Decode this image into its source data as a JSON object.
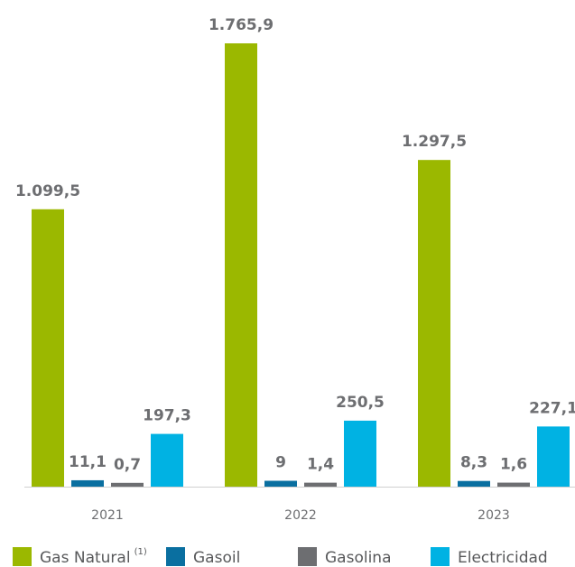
{
  "chart_data": {
    "type": "bar",
    "categories": [
      "2021",
      "2022",
      "2023"
    ],
    "series": [
      {
        "name": "Gas Natural",
        "color": "#9bb800",
        "values": [
          1099.5,
          1765.9,
          1297.5
        ],
        "value_labels": [
          "1.099,5",
          "1.765,9",
          "1.297,5"
        ]
      },
      {
        "name": "Gasoil",
        "color": "#0a6fa0",
        "values": [
          11.1,
          9,
          8.3
        ],
        "value_labels": [
          "11,1",
          "9",
          "8,3"
        ]
      },
      {
        "name": "Gasolina",
        "color": "#6d6e71",
        "values": [
          0.7,
          1.4,
          1.6
        ],
        "value_labels": [
          "0,7",
          "1,4",
          "1,6"
        ]
      },
      {
        "name": "Electricidad",
        "color": "#00b2e3",
        "values": [
          197.3,
          250.5,
          227.1
        ],
        "value_labels": [
          "197,3",
          "250,5",
          "227,1"
        ]
      }
    ],
    "legend_note": "(1)",
    "legend": "bottom"
  }
}
